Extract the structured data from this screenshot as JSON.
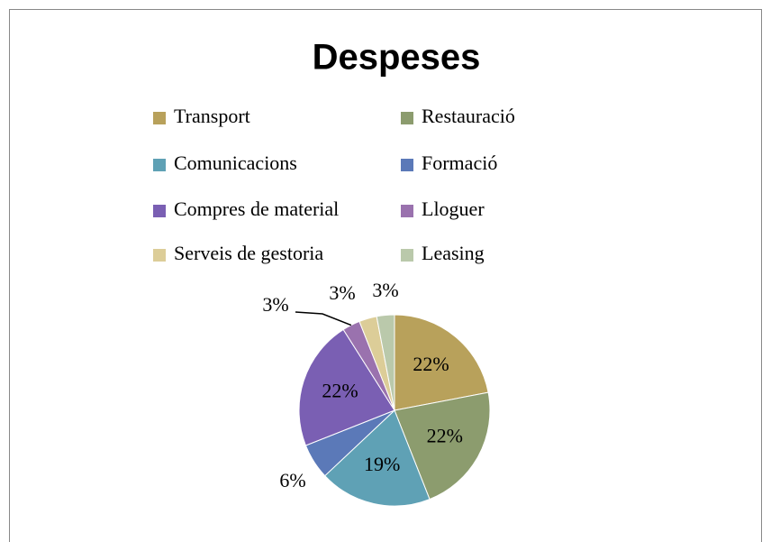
{
  "chart_data": {
    "type": "pie",
    "title": "Despeses",
    "categories": [
      "Transport",
      "Restauració",
      "Comunicacions",
      "Formació",
      "Compres de material",
      "Lloguer",
      "Serveis de gestoria",
      "Leasing"
    ],
    "values": [
      22,
      22,
      19,
      6,
      22,
      3,
      3,
      3
    ],
    "value_labels": [
      "22%",
      "22%",
      "19%",
      "6%",
      "22%",
      "3%",
      "3%",
      "3%"
    ],
    "colors": [
      "#b8a15b",
      "#8c9c6e",
      "#5fa1b5",
      "#5b79b8",
      "#7a5fb3",
      "#9a72ae",
      "#dccd98",
      "#bac9ab"
    ],
    "legend": "top"
  }
}
